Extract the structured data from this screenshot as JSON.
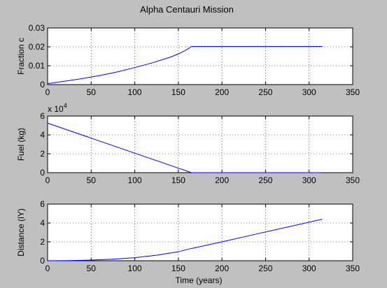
{
  "figure": {
    "title": "Alpha Centauri Mission",
    "background": "#c0c0c0",
    "axes_background": "#ffffff",
    "line_color": "#0000ff",
    "grid": "dotted"
  },
  "chart_data": [
    {
      "type": "line",
      "title": "Alpha Centauri Mission",
      "xlabel": "",
      "ylabel": "Fraction c",
      "xlim": [
        0,
        350
      ],
      "ylim": [
        0,
        0.03
      ],
      "xticks": [
        0,
        50,
        100,
        150,
        200,
        250,
        300,
        350
      ],
      "yticks": [
        0,
        0.01,
        0.02,
        0.03
      ],
      "xtick_labels": [
        "0",
        "50",
        "100",
        "150",
        "200",
        "250",
        "300",
        "350"
      ],
      "ytick_labels": [
        "0",
        "0.01",
        "0.02",
        "0.03"
      ],
      "exponent_label": "",
      "grid": true,
      "series": [
        {
          "x": [
            0,
            20,
            40,
            60,
            80,
            100,
            120,
            140,
            150,
            160,
            165,
            200,
            250,
            300,
            315
          ],
          "y": [
            0.0005,
            0.0018,
            0.0032,
            0.0048,
            0.0067,
            0.009,
            0.0115,
            0.0144,
            0.0162,
            0.0186,
            0.0202,
            0.0202,
            0.0202,
            0.0202,
            0.0202
          ]
        }
      ]
    },
    {
      "type": "line",
      "xlabel": "",
      "ylabel": "Fuel (kg)",
      "xlim": [
        0,
        350
      ],
      "ylim": [
        0,
        60000
      ],
      "xticks": [
        0,
        50,
        100,
        150,
        200,
        250,
        300,
        350
      ],
      "yticks": [
        0,
        20000,
        40000,
        60000
      ],
      "xtick_labels": [
        "0",
        "50",
        "100",
        "150",
        "200",
        "250",
        "300",
        "350"
      ],
      "ytick_labels": [
        "0",
        "2",
        "4",
        "6"
      ],
      "exponent_label": "x 10^4",
      "exponent_base": "x 10",
      "exponent_power": "4",
      "grid": true,
      "series": [
        {
          "x": [
            0,
            165,
            200,
            250,
            300,
            315
          ],
          "y": [
            52500,
            0,
            0,
            0,
            0,
            0
          ]
        }
      ]
    },
    {
      "type": "line",
      "xlabel": "Time (years)",
      "ylabel": "Distance (lY)",
      "xlim": [
        0,
        350
      ],
      "ylim": [
        0,
        6
      ],
      "xticks": [
        0,
        50,
        100,
        150,
        200,
        250,
        300,
        350
      ],
      "yticks": [
        0,
        2,
        4,
        6
      ],
      "xtick_labels": [
        "0",
        "50",
        "100",
        "150",
        "200",
        "250",
        "300",
        "350"
      ],
      "ytick_labels": [
        "0",
        "2",
        "4",
        "6"
      ],
      "exponent_label": "",
      "grid": true,
      "series": [
        {
          "x": [
            0,
            25,
            50,
            75,
            100,
            125,
            150,
            165,
            200,
            250,
            300,
            315
          ],
          "y": [
            0.0,
            0.015,
            0.07,
            0.17,
            0.32,
            0.58,
            0.95,
            1.3,
            2.0,
            3.05,
            4.08,
            4.4
          ]
        }
      ]
    }
  ]
}
